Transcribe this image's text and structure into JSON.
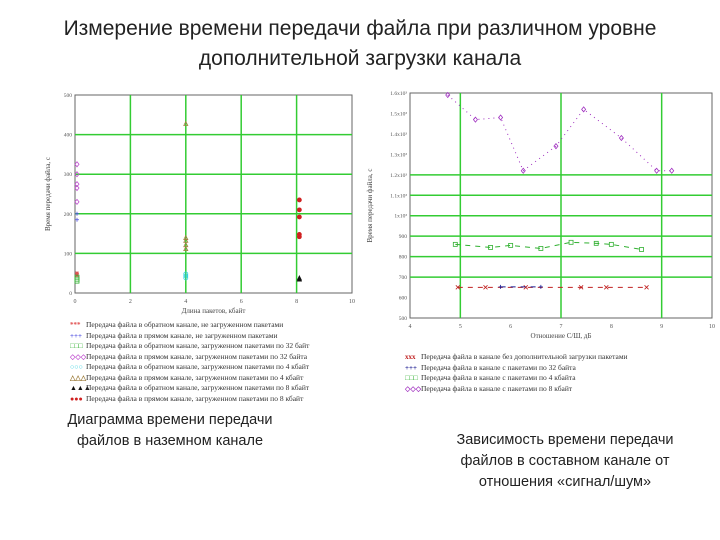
{
  "title": "Измерение времени передачи файла при различном уровне дополнительной загрузки канала",
  "captions": {
    "left": "Диаграмма времени передачи файлов в наземном канале",
    "right": "Зависимость времени передачи файлов в составном канале от отношения «сигнал/шум»"
  },
  "chart_data": [
    {
      "type": "scatter",
      "xlabel": "Длина пакетов, кбайт",
      "ylabel": "Время передачи файла, с",
      "xlim": [
        0,
        10
      ],
      "ylim": [
        0,
        500
      ],
      "xticks": [
        "0",
        "2",
        "4",
        "6",
        "8",
        "10"
      ],
      "yticks": [
        "0",
        "100",
        "200",
        "300",
        "400",
        "500"
      ],
      "grid": true,
      "legend": "bottom",
      "series": [
        {
          "name": "Передача файла в обратном канале, не загруженном пакетами",
          "color": "#e05050",
          "marker": "*",
          "points": [
            [
              0,
              50
            ],
            [
              0,
              45
            ]
          ]
        },
        {
          "name": "Передача файла в прямом канале, не загруженном пакетами",
          "color": "#5050e0",
          "marker": "+",
          "points": [
            [
              0,
              200
            ],
            [
              0,
              185
            ]
          ]
        },
        {
          "name": "Передача файла в обратном канале, загруженном пакетами по 32 байт",
          "color": "#30b030",
          "marker": "□",
          "points": [
            [
              0,
              40
            ],
            [
              0,
              35
            ],
            [
              0,
              30
            ]
          ]
        },
        {
          "name": "Передача файла в прямом канале, загруженном пакетами по 32 байта",
          "color": "#c050d0",
          "marker": "◇",
          "points": [
            [
              0,
              325
            ],
            [
              0,
              300
            ],
            [
              0,
              275
            ],
            [
              0,
              265
            ],
            [
              0,
              230
            ]
          ]
        },
        {
          "name": "Передача файла в обратном канале, загруженном пакетами по 4 кбайт",
          "color": "#30d0e0",
          "marker": "○",
          "points": [
            [
              4,
              48
            ],
            [
              4,
              43
            ],
            [
              4,
              38
            ]
          ]
        },
        {
          "name": "Передача файла в прямом канале, загруженном пакетами по 4 кбайт",
          "color": "#a08040",
          "marker": "△",
          "points": [
            [
              4,
              428
            ],
            [
              4,
              140
            ],
            [
              4,
              133
            ],
            [
              4,
              122
            ],
            [
              4,
              112
            ]
          ]
        },
        {
          "name": "Передача файла в обратном канале, загруженном пакетами по 8 кбайт",
          "color": "#111111",
          "marker": "▲",
          "points": [
            [
              8.1,
              38
            ],
            [
              8.1,
              35
            ]
          ]
        },
        {
          "name": "Передача файла в прямом канале, загруженном пакетами по 8 кбайт",
          "color": "#d02020",
          "marker": "●",
          "points": [
            [
              8.1,
              235
            ],
            [
              8.1,
              210
            ],
            [
              8.1,
              192
            ],
            [
              8.1,
              148
            ],
            [
              8.1,
              142
            ]
          ]
        }
      ]
    },
    {
      "type": "line",
      "xlabel": "Отношение С/Ш, дБ",
      "ylabel": "Время передачи файла, с",
      "xlim": [
        4,
        10
      ],
      "ylim": [
        500,
        1600
      ],
      "xticks": [
        "4",
        "5",
        "6",
        "7",
        "8",
        "9",
        "10"
      ],
      "yticks": [
        "500",
        "600",
        "700",
        "800",
        "900",
        "1x10³",
        "1.1x10³",
        "1.2x10³",
        "1.3x10³",
        "1.4x10³",
        "1.5x10³",
        "1.6x10³"
      ],
      "grid": true,
      "legend": "bottom",
      "series": [
        {
          "name": "Передача файла в канале без дополнительной загрузки пакетами",
          "color": "#c02020",
          "marker": "x",
          "points": [
            [
              4.95,
              650
            ],
            [
              5.5,
              650
            ],
            [
              6.3,
              650
            ],
            [
              7.4,
              650
            ],
            [
              7.9,
              650
            ],
            [
              8.7,
              650
            ]
          ]
        },
        {
          "name": "Передача файла в канале с пакетами по 32 байта",
          "color": "#1a1a90",
          "marker": "+",
          "points": [
            [
              5.8,
              652
            ],
            [
              6.6,
              652
            ]
          ]
        },
        {
          "name": "Передача файла в канале с пакетами по 4 кбайта",
          "color": "#30b030",
          "marker": "□",
          "points": [
            [
              4.9,
              860
            ],
            [
              5.6,
              845
            ],
            [
              6.0,
              855
            ],
            [
              6.6,
              840
            ],
            [
              7.2,
              870
            ],
            [
              7.7,
              865
            ],
            [
              8.0,
              860
            ],
            [
              8.6,
              835
            ]
          ]
        },
        {
          "name": "Передача файла в канале с пакетами по 8 кбайт",
          "color": "#a030c0",
          "marker": "◇",
          "points": [
            [
              4.75,
              1590
            ],
            [
              5.3,
              1470
            ],
            [
              5.8,
              1480
            ],
            [
              6.25,
              1220
            ],
            [
              6.9,
              1340
            ],
            [
              7.45,
              1520
            ],
            [
              8.2,
              1380
            ],
            [
              8.9,
              1220
            ],
            [
              9.2,
              1220
            ]
          ]
        }
      ]
    }
  ]
}
